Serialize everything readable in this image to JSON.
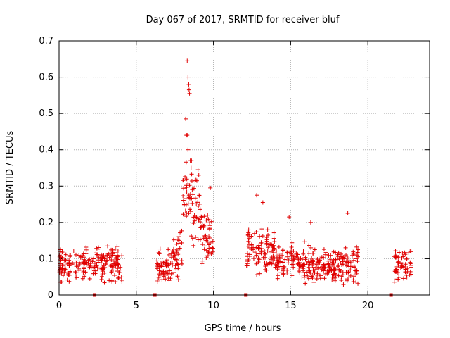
{
  "chart_data": {
    "type": "scatter",
    "title": "Day 067 of 2017, SRMTID for receiver bluf",
    "xlabel": "GPS time / hours",
    "ylabel": "SRMTID / TECUs",
    "xlim": [
      0,
      24
    ],
    "ylim": [
      0,
      0.7
    ],
    "xticks": [
      0,
      5,
      10,
      15,
      20
    ],
    "xtick_labels": [
      "0",
      "5",
      "10",
      "15",
      "20"
    ],
    "yticks": [
      0,
      0.1,
      0.2,
      0.3,
      0.4,
      0.5,
      0.6,
      0.7
    ],
    "ytick_labels": [
      "0",
      "0.1",
      "0.2",
      "0.3",
      "0.4",
      "0.5",
      "0.6",
      "0.7"
    ],
    "grid": true,
    "marker": "+",
    "color": "#e00000",
    "series_segments": [
      {
        "range": [
          0.0,
          4.1
        ],
        "base": 0.085,
        "spread": 0.04
      },
      {
        "range": [
          6.3,
          7.4
        ],
        "base": 0.08,
        "spread": 0.035
      },
      {
        "range": [
          7.4,
          8.0
        ],
        "base": 0.12,
        "spread": 0.06
      },
      {
        "range": [
          8.0,
          8.6
        ],
        "base": 0.25,
        "spread": 0.1
      },
      {
        "range": [
          8.6,
          9.2
        ],
        "base": 0.22,
        "spread": 0.09
      },
      {
        "range": [
          9.2,
          10.0
        ],
        "base": 0.16,
        "spread": 0.06
      },
      {
        "range": [
          12.1,
          14.0
        ],
        "base": 0.12,
        "spread": 0.05
      },
      {
        "range": [
          14.0,
          16.5
        ],
        "base": 0.09,
        "spread": 0.045
      },
      {
        "range": [
          16.5,
          19.4
        ],
        "base": 0.08,
        "spread": 0.04
      },
      {
        "range": [
          21.7,
          22.8
        ],
        "base": 0.08,
        "spread": 0.04
      }
    ],
    "notable_points": [
      {
        "x": 8.3,
        "y": 0.645
      },
      {
        "x": 8.35,
        "y": 0.6
      },
      {
        "x": 8.4,
        "y": 0.58
      },
      {
        "x": 8.42,
        "y": 0.565
      },
      {
        "x": 8.45,
        "y": 0.555
      },
      {
        "x": 8.2,
        "y": 0.485
      },
      {
        "x": 8.25,
        "y": 0.44
      },
      {
        "x": 8.3,
        "y": 0.44
      },
      {
        "x": 8.35,
        "y": 0.4
      },
      {
        "x": 8.5,
        "y": 0.37
      },
      {
        "x": 8.55,
        "y": 0.35
      },
      {
        "x": 9.0,
        "y": 0.345
      },
      {
        "x": 9.05,
        "y": 0.33
      },
      {
        "x": 9.8,
        "y": 0.295
      },
      {
        "x": 12.8,
        "y": 0.275
      },
      {
        "x": 13.2,
        "y": 0.255
      },
      {
        "x": 18.7,
        "y": 0.225
      },
      {
        "x": 16.3,
        "y": 0.2
      },
      {
        "x": 14.9,
        "y": 0.215
      }
    ],
    "zero_markers": [
      2.3,
      6.2,
      12.1,
      21.5
    ]
  }
}
